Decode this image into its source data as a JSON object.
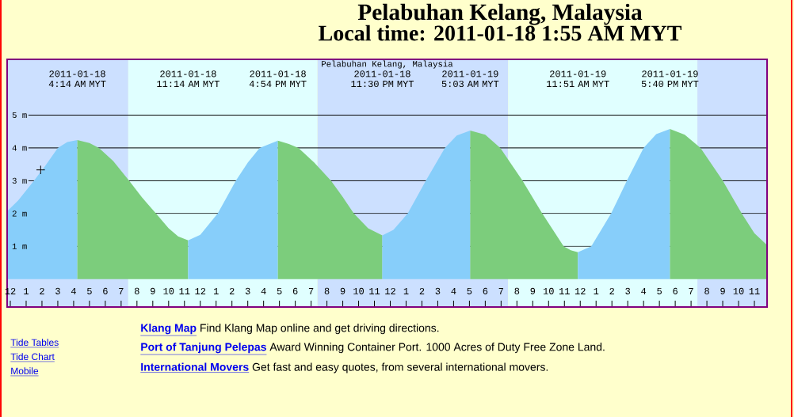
{
  "chart_data": {
    "type": "area",
    "title": "Pelabuhan Kelang, Malaysia",
    "subtitle": "Local time: 2011-01-18 1:55 AM MYT",
    "annotations": [
      "Pelabuhan Kelang, Malaysia",
      "Tide Tables",
      "Tide Chart",
      "Mobile",
      "Klang Map",
      "Find Klang Map online and get driving directions.",
      "Port of Tanjung Pelepas",
      "Award Winning Container Port. 1000 Acres of Duty Free Zone Land.",
      "International Movers",
      "Get fast and easy quotes, from several international movers."
    ],
    "series": [
      {
        "color": "#87cefa",
        "x": [
          "2011-01-17T23:48",
          "2011-01-18T00:30",
          "2011-01-18T01:30",
          "2011-01-18T02:12",
          "2011-01-18T03:00",
          "2011-01-18T03:36",
          "2011-01-18T04:14"
        ],
        "values": [
          2.07,
          2.4,
          3.0,
          3.45,
          4.0,
          4.18,
          4.24
        ]
      },
      {
        "color": "#7ccd7c",
        "x": [
          "2011-01-18T04:14",
          "2011-01-18T05:00",
          "2011-01-18T05:36",
          "2011-01-18T06:30",
          "2011-01-18T07:30",
          "2011-01-18T08:18",
          "2011-01-18T09:12",
          "2011-01-18T10:00",
          "2011-01-18T10:36",
          "2011-01-18T11:14"
        ],
        "values": [
          4.24,
          4.15,
          4.0,
          3.6,
          3.0,
          2.5,
          2.0,
          1.55,
          1.3,
          1.18
        ]
      },
      {
        "color": "#87cefa",
        "x": [
          "2011-01-18T11:14",
          "2011-01-18T12:00",
          "2011-01-18T13:06",
          "2011-01-18T14:15",
          "2011-01-18T15:00",
          "2011-01-18T15:45",
          "2011-01-18T16:54"
        ],
        "values": [
          1.18,
          1.35,
          2.0,
          3.0,
          3.55,
          4.0,
          4.22
        ]
      },
      {
        "color": "#7ccd7c",
        "x": [
          "2011-01-18T16:54",
          "2011-01-18T17:36",
          "2011-01-18T18:12",
          "2011-01-18T19:12",
          "2011-01-18T20:15",
          "2011-01-18T21:00",
          "2011-01-18T21:42",
          "2011-01-18T22:36",
          "2011-01-18T23:30"
        ],
        "values": [
          4.22,
          4.12,
          4.0,
          3.55,
          3.0,
          2.5,
          2.0,
          1.55,
          1.33
        ]
      },
      {
        "color": "#87cefa",
        "x": [
          "2011-01-18T23:30",
          "2011-01-19T00:12",
          "2011-01-19T01:06",
          "2011-01-19T02:15",
          "2011-01-19T03:27",
          "2011-01-19T04:12",
          "2011-01-19T05:03"
        ],
        "values": [
          1.33,
          1.5,
          2.0,
          3.0,
          4.0,
          4.38,
          4.53
        ]
      },
      {
        "color": "#7ccd7c",
        "x": [
          "2011-01-19T05:03",
          "2011-01-19T06:00",
          "2011-01-19T06:57",
          "2011-01-19T08:21",
          "2011-01-19T09:36",
          "2011-01-19T10:57",
          "2011-01-19T11:24",
          "2011-01-19T11:51"
        ],
        "values": [
          4.53,
          4.4,
          4.0,
          3.0,
          2.0,
          1.0,
          0.88,
          0.82
        ]
      },
      {
        "color": "#87cefa",
        "x": [
          "2011-01-19T11:51",
          "2011-01-19T12:42",
          "2011-01-19T13:57",
          "2011-01-19T14:57",
          "2011-01-19T16:00",
          "2011-01-19T16:48",
          "2011-01-19T17:40"
        ],
        "values": [
          0.82,
          1.0,
          2.0,
          3.0,
          4.0,
          4.42,
          4.58
        ]
      },
      {
        "color": "#7ccd7c",
        "x": [
          "2011-01-19T17:40",
          "2011-01-19T18:36",
          "2011-01-19T19:36",
          "2011-01-19T21:00",
          "2011-01-19T22:12",
          "2011-01-19T23:00",
          "2011-01-19T23:48"
        ],
        "values": [
          4.58,
          4.4,
          4.0,
          3.0,
          2.0,
          1.4,
          1.04
        ]
      },
      {
        "type": "scatter",
        "marker": "cross",
        "color": "#000000",
        "x": [
          "2011-01-18T01:55"
        ],
        "values": [
          3.33
        ]
      }
    ],
    "xlim": [
      "2011-01-17T23:48",
      "2011-01-19T23:48"
    ],
    "ylim": [
      -0.85,
      6.7
    ],
    "xticks": [
      {
        "value": "2011-01-18T00:00",
        "label": "12"
      },
      {
        "value": "2011-01-18T01:00",
        "label": "1"
      },
      {
        "value": "2011-01-18T02:00",
        "label": "2"
      },
      {
        "value": "2011-01-18T03:00",
        "label": "3"
      },
      {
        "value": "2011-01-18T04:00",
        "label": "4"
      },
      {
        "value": "2011-01-18T05:00",
        "label": "5"
      },
      {
        "value": "2011-01-18T06:00",
        "label": "6"
      },
      {
        "value": "2011-01-18T07:00",
        "label": "7"
      },
      {
        "value": "2011-01-18T08:00",
        "label": "8"
      },
      {
        "value": "2011-01-18T09:00",
        "label": "9"
      },
      {
        "value": "2011-01-18T10:00",
        "label": "10"
      },
      {
        "value": "2011-01-18T11:00",
        "label": "11"
      },
      {
        "value": "2011-01-18T12:00",
        "label": "12"
      },
      {
        "value": "2011-01-18T13:00",
        "label": "1"
      },
      {
        "value": "2011-01-18T14:00",
        "label": "2"
      },
      {
        "value": "2011-01-18T15:00",
        "label": "3"
      },
      {
        "value": "2011-01-18T16:00",
        "label": "4"
      },
      {
        "value": "2011-01-18T17:00",
        "label": "5"
      },
      {
        "value": "2011-01-18T18:00",
        "label": "6"
      },
      {
        "value": "2011-01-18T19:00",
        "label": "7"
      },
      {
        "value": "2011-01-18T20:00",
        "label": "8"
      },
      {
        "value": "2011-01-18T21:00",
        "label": "9"
      },
      {
        "value": "2011-01-18T22:00",
        "label": "10"
      },
      {
        "value": "2011-01-18T23:00",
        "label": "11"
      },
      {
        "value": "2011-01-19T00:00",
        "label": "12"
      },
      {
        "value": "2011-01-19T01:00",
        "label": "1"
      },
      {
        "value": "2011-01-19T02:00",
        "label": "2"
      },
      {
        "value": "2011-01-19T03:00",
        "label": "3"
      },
      {
        "value": "2011-01-19T04:00",
        "label": "4"
      },
      {
        "value": "2011-01-19T05:00",
        "label": "5"
      },
      {
        "value": "2011-01-19T06:00",
        "label": "6"
      },
      {
        "value": "2011-01-19T07:00",
        "label": "7"
      },
      {
        "value": "2011-01-19T08:00",
        "label": "8"
      },
      {
        "value": "2011-01-19T09:00",
        "label": "9"
      },
      {
        "value": "2011-01-19T10:00",
        "label": "10"
      },
      {
        "value": "2011-01-19T11:00",
        "label": "11"
      },
      {
        "value": "2011-01-19T12:00",
        "label": "12"
      },
      {
        "value": "2011-01-19T13:00",
        "label": "1"
      },
      {
        "value": "2011-01-19T14:00",
        "label": "2"
      },
      {
        "value": "2011-01-19T15:00",
        "label": "3"
      },
      {
        "value": "2011-01-19T16:00",
        "label": "4"
      },
      {
        "value": "2011-01-19T17:00",
        "label": "5"
      },
      {
        "value": "2011-01-19T18:00",
        "label": "6"
      },
      {
        "value": "2011-01-19T19:00",
        "label": "7"
      },
      {
        "value": "2011-01-19T20:00",
        "label": "8"
      },
      {
        "value": "2011-01-19T21:00",
        "label": "9"
      },
      {
        "value": "2011-01-19T22:00",
        "label": "10"
      },
      {
        "value": "2011-01-19T23:00",
        "label": "11"
      }
    ],
    "yticks": [
      {
        "value": 1,
        "label": "1 m"
      },
      {
        "value": 2,
        "label": "2 m"
      },
      {
        "value": 3,
        "label": "3 m"
      },
      {
        "value": 4,
        "label": "4 m"
      },
      {
        "value": 5,
        "label": "5 m"
      }
    ],
    "x2lim": [
      "2011-01-17T23:48",
      "2011-01-19T23:48"
    ],
    "x2ticks": [
      {
        "value": "2011-01-18T04:14",
        "label": "2011-01-18 4:14 AM MYT"
      },
      {
        "value": "2011-01-18T11:14",
        "label": "2011-01-18 11:14 AM MYT"
      },
      {
        "value": "2011-01-18T16:54",
        "label": "2011-01-18 4:54 PM MYT"
      },
      {
        "value": "2011-01-18T23:30",
        "label": "2011-01-18 11:30 PM MYT"
      },
      {
        "value": "2011-01-19T05:03",
        "label": "2011-01-19 5:03 AM MYT"
      },
      {
        "value": "2011-01-19T11:51",
        "label": "2011-01-19 11:51 AM MYT"
      },
      {
        "value": "2011-01-19T17:40",
        "label": "2011-01-19 5:40 PM MYT"
      }
    ],
    "bands": [
      {
        "axis": "x",
        "from": "2011-01-17T23:48",
        "to": "2011-01-18T07:27",
        "color": "#cce0ff"
      },
      {
        "axis": "x",
        "from": "2011-01-18T07:27",
        "to": "2011-01-18T19:24",
        "color": "#e0ffff"
      },
      {
        "axis": "x",
        "from": "2011-01-18T19:24",
        "to": "2011-01-19T07:27",
        "color": "#cce0ff"
      },
      {
        "axis": "x",
        "from": "2011-01-19T07:27",
        "to": "2011-01-19T19:24",
        "color": "#e0ffff"
      },
      {
        "axis": "x",
        "from": "2011-01-19T19:24",
        "to": "2011-01-19T23:48",
        "color": "#cce0ff"
      }
    ],
    "grid": "y"
  }
}
